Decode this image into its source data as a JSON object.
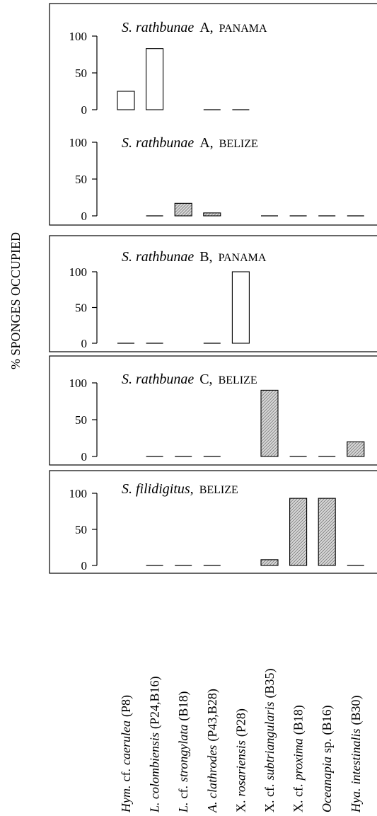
{
  "chart_data": [
    {
      "type": "bar",
      "species": "S. rathbunae",
      "morph": "A,",
      "location": "PANAMA",
      "ylabel": "% SPONGES OCCUPIED",
      "values": [
        25,
        83,
        null,
        0,
        0,
        null,
        null,
        null,
        null
      ],
      "color": "#ffffff",
      "hatched": false,
      "ylim": [
        0,
        100
      ],
      "yticks": [
        0,
        50,
        100
      ]
    },
    {
      "type": "bar",
      "species": "S. rathbunae",
      "morph": "A,",
      "location": "BELIZE",
      "values": [
        null,
        0,
        17,
        4,
        null,
        0,
        0,
        0,
        0
      ],
      "color": "#bbbbbb",
      "hatched": true,
      "ylim": [
        0,
        100
      ],
      "yticks": [
        0,
        50,
        100
      ]
    },
    {
      "type": "bar",
      "species": "S. rathbunae",
      "morph": "B,",
      "location": "PANAMA",
      "values": [
        0,
        0,
        null,
        0,
        100,
        null,
        null,
        null,
        null
      ],
      "color": "#ffffff",
      "hatched": false,
      "ylim": [
        0,
        100
      ],
      "yticks": [
        0,
        50,
        100
      ]
    },
    {
      "type": "bar",
      "species": "S. rathbunae",
      "morph": "C,",
      "location": "BELIZE",
      "values": [
        null,
        0,
        0,
        0,
        null,
        90,
        0,
        0,
        20
      ],
      "color": "#bbbbbb",
      "hatched": true,
      "ylim": [
        0,
        100
      ],
      "yticks": [
        0,
        50,
        100
      ]
    },
    {
      "type": "bar",
      "species": "S. filidigitus,",
      "location": "BELIZE",
      "values": [
        null,
        0,
        0,
        0,
        null,
        8,
        93,
        93,
        0
      ],
      "color": "#bbbbbb",
      "hatched": true,
      "ylim": [
        0,
        100
      ],
      "yticks": [
        0,
        50,
        100
      ],
      "categories": [
        [
          {
            "text": "Hym.",
            "italic": true
          },
          {
            "text": "cf.",
            "italic": false
          },
          {
            "text": "caerulea",
            "italic": true
          },
          {
            "text": "(P8)",
            "italic": false
          }
        ],
        [
          {
            "text": "L. colombiensis",
            "italic": true
          },
          {
            "text": "(P24,B16)",
            "italic": false
          }
        ],
        [
          {
            "text": "L.",
            "italic": true
          },
          {
            "text": "cf.",
            "italic": false
          },
          {
            "text": "strongylata",
            "italic": true
          },
          {
            "text": "(B18)",
            "italic": false
          }
        ],
        [
          {
            "text": "A. clathrodes",
            "italic": true
          },
          {
            "text": "(P43,B28)",
            "italic": false
          }
        ],
        [
          {
            "text": "X.",
            "italic": false
          },
          {
            "text": "rosariensis",
            "italic": true
          },
          {
            "text": "(P28)",
            "italic": false
          }
        ],
        [
          {
            "text": "X. cf.",
            "italic": false
          },
          {
            "text": "subtriangularis",
            "italic": true
          },
          {
            "text": "(B35)",
            "italic": false
          }
        ],
        [
          {
            "text": "X. cf.",
            "italic": false
          },
          {
            "text": "proxima",
            "italic": true
          },
          {
            "text": "(B18)",
            "italic": false
          }
        ],
        [
          {
            "text": "Oceanapia",
            "italic": true
          },
          {
            "text": "sp.",
            "italic": false
          },
          {
            "text": "(B16)",
            "italic": false
          }
        ],
        [
          {
            "text": "Hya.",
            "italic": true
          },
          {
            "text": "intestinalis",
            "italic": true
          },
          {
            "text": "(B30)",
            "italic": false
          }
        ]
      ]
    }
  ]
}
